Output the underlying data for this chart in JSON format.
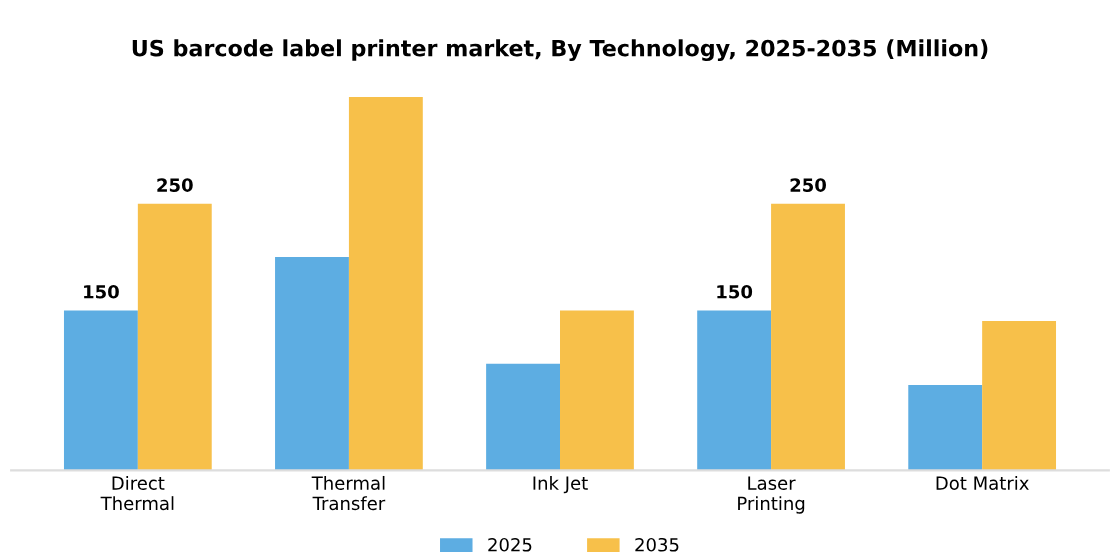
{
  "chart_data": {
    "type": "bar",
    "title": "US barcode label printer market, By Technology, 2025-2035 (Million)",
    "categories": [
      "Direct\nThermal",
      "Thermal\nTransfer",
      "Ink Jet",
      "Laser\nPrinting",
      "Dot Matrix"
    ],
    "series": [
      {
        "name": "2025",
        "color": "#5dade2",
        "values": [
          150,
          200,
          100,
          150,
          80
        ],
        "value_labels": [
          "150",
          null,
          null,
          "150",
          null
        ]
      },
      {
        "name": "2035",
        "color": "#f7c04a",
        "values": [
          250,
          350,
          150,
          250,
          140
        ],
        "value_labels": [
          "250",
          null,
          null,
          "250",
          null
        ]
      }
    ],
    "legend": "bottom",
    "grid": false
  }
}
